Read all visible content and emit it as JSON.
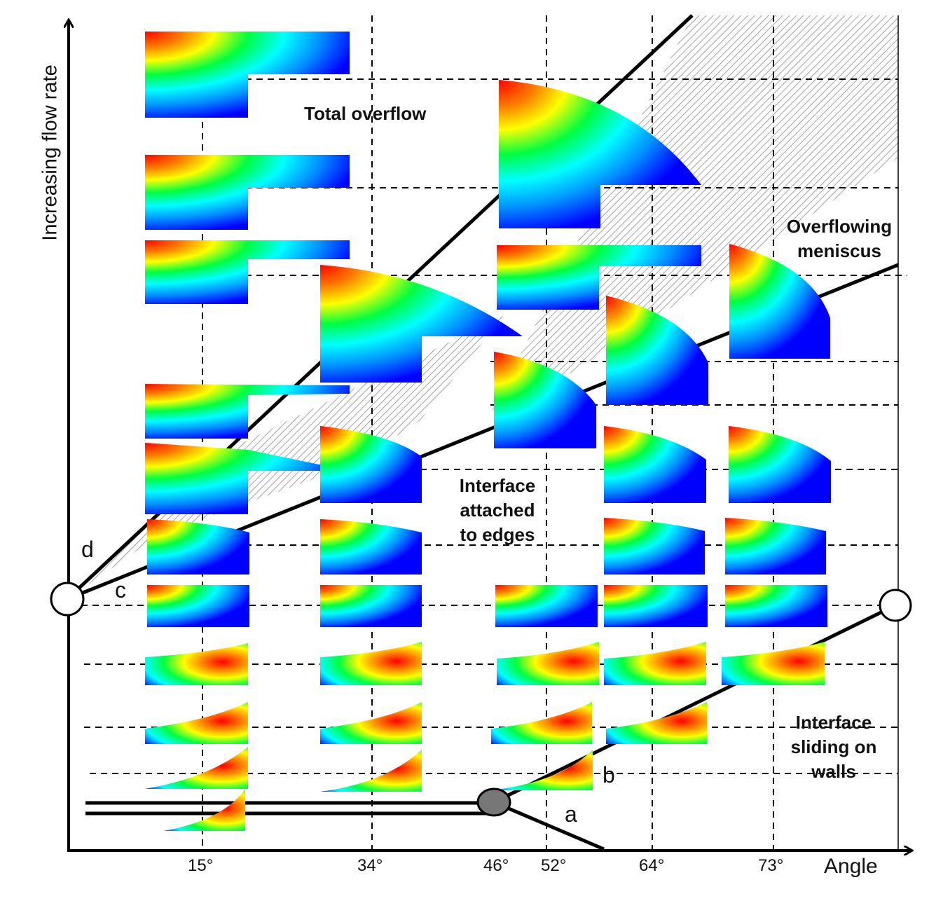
{
  "axes": {
    "y_label": "Increasing flow rate",
    "x_label": "Angle",
    "x_ticks": [
      "15°",
      "34°",
      "46°",
      "52°",
      "64°",
      "73°"
    ]
  },
  "regions": {
    "total_overflow": "Total overflow",
    "overflowing_line1": "Overflowing",
    "overflowing_line2": "meniscus",
    "attached_line1": "Interface",
    "attached_line2": "attached",
    "attached_line3": "to edges",
    "sliding_line1": "Interface",
    "sliding_line2": "sliding on",
    "sliding_line3": "walls"
  },
  "line_labels": {
    "a": "a",
    "b": "b",
    "c": "c",
    "d": "d"
  },
  "colors": {
    "axis": "#000000",
    "gradient": [
      "#ff0000",
      "#ff8000",
      "#ffff00",
      "#00ff40",
      "#00ffff",
      "#0000ff"
    ],
    "hatch": "#999999",
    "triple_point": "#777777"
  }
}
